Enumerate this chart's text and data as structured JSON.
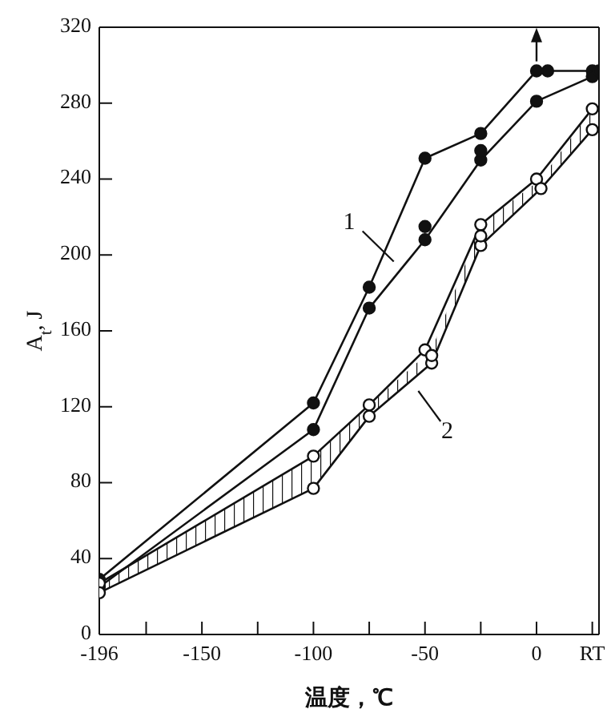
{
  "chart_data": {
    "type": "line",
    "xlabel": "温度，℃",
    "ylabel": "A$_{t}$, J",
    "xlim": [
      -196,
      28
    ],
    "xticks": [
      -196,
      {
        "value": -175,
        "label": null
      },
      -150,
      {
        "value": -125,
        "label": null
      },
      -100,
      {
        "value": -75,
        "label": null
      },
      -50,
      {
        "value": -25,
        "label": null
      },
      0,
      {
        "value": 25,
        "label": "RT"
      }
    ],
    "ylim": [
      0,
      320
    ],
    "yticks": [
      0,
      40,
      80,
      120,
      160,
      200,
      240,
      280,
      320
    ],
    "grid": false,
    "legend": false,
    "marker": "circle",
    "line_style": "solid",
    "series": [
      {
        "color": "#111111",
        "x": [
          -196,
          -100,
          -75,
          -50,
          -25,
          0,
          5,
          25
        ],
        "values": [
          29,
          122,
          183,
          251,
          264,
          297,
          297,
          297
        ]
      },
      {
        "color": "#111111",
        "x": [
          -196,
          -100,
          -75,
          -50,
          -25,
          0,
          25
        ],
        "values": [
          25,
          108,
          172,
          208,
          250,
          281,
          294
        ]
      },
      {
        "type": "scatter",
        "color": "#111111",
        "x": [
          -50,
          -25,
          28
        ],
        "values": [
          215,
          255,
          297
        ]
      },
      {
        "color": "#111111",
        "x": [
          -196,
          -100,
          -75,
          -50,
          -25,
          0,
          25
        ],
        "values": [
          27,
          94,
          121,
          150,
          216,
          240,
          277
        ]
      },
      {
        "color": "#111111",
        "x": [
          -196,
          -100,
          -75,
          -47,
          -25,
          2,
          25
        ],
        "values": [
          22,
          77,
          115,
          143,
          205,
          235,
          266
        ],
        "lower": [
          22,
          77,
          115,
          143,
          205,
          235,
          266
        ],
        "upper": [
          27,
          94,
          121,
          150,
          216,
          240,
          277
        ]
      },
      {
        "type": "scatter",
        "color": "#111111",
        "x": [
          -47,
          -25
        ],
        "values": [
          147,
          210
        ]
      }
    ],
    "annotations": [
      "1",
      "2"
    ]
  }
}
